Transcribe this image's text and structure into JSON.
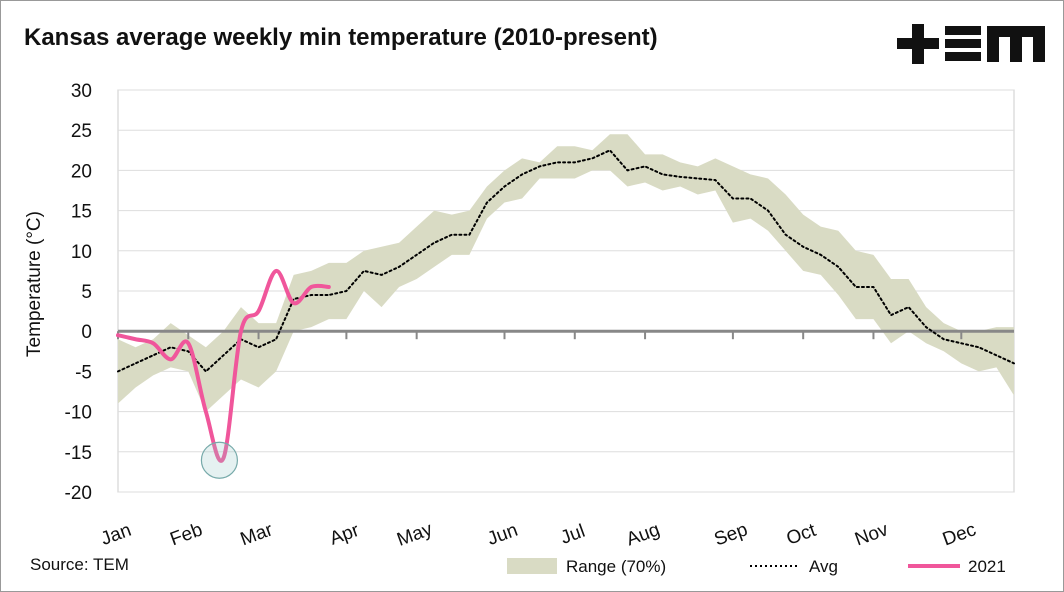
{
  "chart_data": {
    "type": "range_line",
    "title": "Kansas average weekly min temperature (2010-present)",
    "y_label": "Temperature (°C)",
    "source": "Source: TEM",
    "categories": [
      "Jan",
      null,
      null,
      null,
      "Feb",
      null,
      null,
      null,
      "Mar",
      null,
      null,
      null,
      null,
      "Apr",
      null,
      null,
      null,
      "May",
      null,
      null,
      null,
      null,
      "Jun",
      null,
      null,
      null,
      "Jul",
      null,
      null,
      null,
      "Aug",
      null,
      null,
      null,
      null,
      "Sep",
      null,
      null,
      null,
      "Oct",
      null,
      null,
      null,
      "Nov",
      null,
      null,
      null,
      null,
      "Dec",
      null,
      null,
      null
    ],
    "ylim": [
      -20,
      30
    ],
    "yticks": [
      -20,
      -15,
      -10,
      -5,
      0,
      5,
      10,
      15,
      20,
      25,
      30
    ],
    "grid": true,
    "range": {
      "name": "Range (70%)",
      "color": "#d9dbc4",
      "low": [
        -9,
        -7,
        -5.5,
        -4.5,
        -5,
        -10,
        -8,
        -6,
        -7,
        -5,
        0,
        0.5,
        1.5,
        1.5,
        5,
        3,
        5.5,
        6.5,
        8,
        9.5,
        9.5,
        14,
        16,
        16.5,
        19,
        19,
        19,
        20,
        20,
        18,
        18.5,
        17.5,
        18,
        17,
        17.5,
        13.5,
        14,
        12.5,
        10,
        7.5,
        7,
        4.5,
        1.5,
        1.5,
        -1.5,
        0,
        -1.5,
        -2.5,
        -4,
        -5,
        -4.5,
        -8
      ],
      "high": [
        -1,
        -2,
        -1,
        1,
        -0.5,
        -2,
        0,
        3,
        1,
        1,
        7,
        7.5,
        8.5,
        8.5,
        10,
        10.5,
        11,
        13,
        15,
        14.5,
        15,
        18,
        20,
        21.5,
        21,
        23,
        23,
        22.5,
        24.5,
        24.5,
        22,
        22,
        21,
        20.5,
        21.5,
        20.5,
        19.5,
        19,
        17,
        14.5,
        13,
        12.5,
        10,
        9.5,
        6.5,
        6.5,
        3,
        1,
        0,
        0,
        0.5,
        0.5
      ]
    },
    "series": [
      {
        "name": "Avg",
        "color": "#000000",
        "style": "dotted",
        "values": [
          -5,
          -4,
          -3,
          -2,
          -2.5,
          -5,
          -3,
          -1,
          -2,
          -1,
          4,
          4.5,
          4.5,
          5,
          7.5,
          7,
          8,
          9.5,
          11,
          12,
          12,
          16,
          18,
          19.5,
          20.5,
          21,
          21,
          21.5,
          22.5,
          20,
          20.5,
          19.5,
          19.2,
          19,
          18.8,
          16.5,
          16.5,
          15,
          12,
          10.5,
          9.5,
          8,
          5.5,
          5.5,
          2,
          3,
          0.5,
          -1,
          -1.5,
          -2,
          -3,
          -4
        ]
      },
      {
        "name": "2021",
        "color": "#f0569b",
        "style": "solid",
        "values": [
          -0.5,
          -1,
          -1.5,
          -3.5,
          -1.5,
          -10,
          -15.8,
          0,
          2.5,
          7.5,
          3.5,
          5.5,
          5.5,
          null,
          null,
          null,
          null,
          null,
          null,
          null,
          null,
          null,
          null,
          null,
          null,
          null,
          null,
          null,
          null,
          null,
          null,
          null,
          null,
          null,
          null,
          null,
          null,
          null,
          null,
          null,
          null,
          null,
          null,
          null,
          null,
          null,
          null,
          null,
          null,
          null,
          null,
          null
        ]
      }
    ]
  }
}
